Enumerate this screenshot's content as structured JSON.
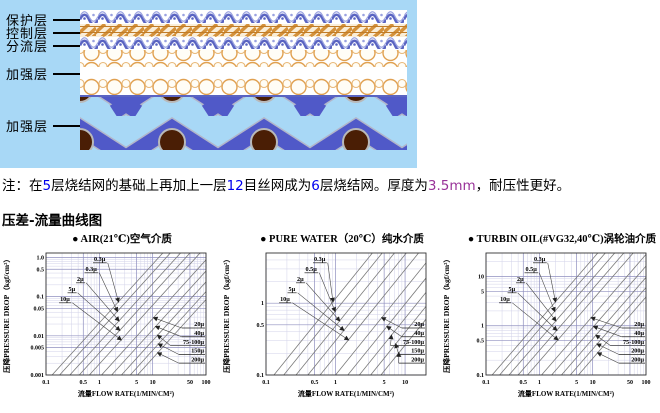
{
  "colors": {
    "diagram_bg": "#a8d8f6",
    "wave_blue": "#5a64c2",
    "mesh_orange": "#d4913a",
    "weave_blue": "#5059c8",
    "circle_brown": "#4a1e05",
    "grid_major": "#8f8fbf",
    "grid_minor": "#d2d2e8",
    "series_line": "#7a7a7a",
    "note_number_blue": "#0000ee",
    "note_thickness_purple": "#993399"
  },
  "diagram": {
    "layer_labels": [
      "保护层",
      "控制层",
      "分流层",
      "加强层",
      "加强层"
    ]
  },
  "note": {
    "segments": [
      {
        "text": "注：在",
        "color": "#000000"
      },
      {
        "text": "5",
        "color": "#0000ee"
      },
      {
        "text": "层烧结网的基础上再加上一层",
        "color": "#000000"
      },
      {
        "text": "12",
        "color": "#0000ee"
      },
      {
        "text": "目丝网成为",
        "color": "#000000"
      },
      {
        "text": "6",
        "color": "#0000ee"
      },
      {
        "text": "层烧结网。厚度为",
        "color": "#000000"
      },
      {
        "text": "3.5mm",
        "color": "#993399"
      },
      {
        "text": "，耐压性更好。",
        "color": "#000000"
      }
    ]
  },
  "section_title": "压差-流量曲线图",
  "chart_data": [
    {
      "type": "line",
      "scale": "log-log",
      "grid": true,
      "title": "● AIR(21℃)空气介质",
      "xlabel": "流量FLOW RATE(1/MIN/CM²)",
      "ylabel": "压降PRESSURE DROP（kgf/cm²）",
      "xlim": [
        0.1,
        100
      ],
      "ylim": [
        0.001,
        1.3
      ],
      "xticks": [
        {
          "label": "0.1",
          "value": 0.1
        },
        {
          "label": "0.5",
          "value": 0.5
        },
        {
          "label": "1",
          "value": 1
        },
        {
          "label": "5",
          "value": 5
        },
        {
          "label": "10",
          "value": 10
        },
        {
          "label": "50",
          "value": 50
        },
        {
          "label": "100",
          "value": 100
        }
      ],
      "yticks": [
        {
          "label": "1.0",
          "value": 1.0
        },
        {
          "label": "0.5",
          "value": 0.5
        },
        {
          "label": "0.1",
          "value": 0.1
        },
        {
          "label": "0.05",
          "value": 0.05
        },
        {
          "label": "0.01",
          "value": 0.01
        },
        {
          "label": "0.005",
          "value": 0.005
        },
        {
          "label": "0.001",
          "value": 0.001
        }
      ],
      "slope": 1.5,
      "series": [
        {
          "name": "0.3μ",
          "x_at_ymin": 0.13,
          "label_group": "upper-left"
        },
        {
          "name": "0.3μ",
          "x_at_ymin": 0.18,
          "label_group": "upper-left"
        },
        {
          "name": "2μ",
          "x_at_ymin": 0.28,
          "label_group": "upper-left"
        },
        {
          "name": "5μ",
          "x_at_ymin": 0.42,
          "label_group": "upper-left"
        },
        {
          "name": "10μ",
          "x_at_ymin": 0.65,
          "label_group": "upper-left"
        },
        {
          "name": "20μ",
          "x_at_ymin": 1.1,
          "label_group": "lower-right"
        },
        {
          "name": "40μ",
          "x_at_ymin": 1.7,
          "label_group": "lower-right"
        },
        {
          "name": "75-100μ",
          "x_at_ymin": 2.6,
          "label_group": "lower-right"
        },
        {
          "name": "150μ",
          "x_at_ymin": 3.8,
          "label_group": "lower-right"
        },
        {
          "name": "200μ",
          "x_at_ymin": 5.2,
          "label_group": "lower-right"
        }
      ]
    },
    {
      "type": "line",
      "scale": "log-log",
      "grid": true,
      "title": "● PURE WATER（20℃）纯水介质",
      "xlabel": "流量FLOW RATE(1/MIN/CM²)",
      "ylabel": "压降PRESSURE DROP（kgf/cm²）",
      "xlim": [
        0.1,
        20
      ],
      "ylim": [
        0.1,
        5
      ],
      "xticks": [
        {
          "label": "0.1",
          "value": 0.1
        },
        {
          "label": "0.5",
          "value": 0.5
        },
        {
          "label": "1",
          "value": 1
        },
        {
          "label": "5",
          "value": 5
        },
        {
          "label": "10",
          "value": 10
        }
      ],
      "yticks": [
        {
          "label": "1",
          "value": 1
        },
        {
          "label": "0.5",
          "value": 0.5
        },
        {
          "label": "0.1",
          "value": 0.1
        }
      ],
      "slope": 1.2,
      "series": [
        {
          "name": "0.3μ",
          "x_at_ymin": 0.13,
          "label_group": "upper-left"
        },
        {
          "name": "0.5μ",
          "x_at_ymin": 0.18,
          "label_group": "upper-left"
        },
        {
          "name": "2μ",
          "x_at_ymin": 0.27,
          "label_group": "upper-left"
        },
        {
          "name": "5μ",
          "x_at_ymin": 0.4,
          "label_group": "upper-left"
        },
        {
          "name": "10μ",
          "x_at_ymin": 0.6,
          "label_group": "upper-left"
        },
        {
          "name": "20μ",
          "x_at_ymin": 1.0,
          "label_group": "lower-right"
        },
        {
          "name": "40μ",
          "x_at_ymin": 1.5,
          "label_group": "lower-right"
        },
        {
          "name": "75-100μ",
          "x_at_ymin": 2.2,
          "label_group": "lower-right"
        },
        {
          "name": "150μ",
          "x_at_ymin": 3.2,
          "label_group": "lower-right"
        },
        {
          "name": "200μ",
          "x_at_ymin": 4.5,
          "label_group": "lower-right"
        }
      ]
    },
    {
      "type": "line",
      "scale": "log-log",
      "grid": true,
      "title": "● TURBIN OIL(#VG32,40℃)涡轮油介质",
      "xlabel": "流量FLOW RATE(1/MIN/CM²)",
      "ylabel": "压降PRESSURE DROP（kgf/cm²）",
      "xlim": [
        0.1,
        100
      ],
      "ylim": [
        0.1,
        30
      ],
      "xticks": [
        {
          "label": "0.1",
          "value": 0.1
        },
        {
          "label": "0.5",
          "value": 0.5
        },
        {
          "label": "1",
          "value": 1
        },
        {
          "label": "5",
          "value": 5
        },
        {
          "label": "10",
          "value": 10
        },
        {
          "label": "50",
          "value": 50
        },
        {
          "label": "100",
          "value": 100
        }
      ],
      "yticks": [
        {
          "label": "10",
          "value": 10
        },
        {
          "label": "5",
          "value": 5
        },
        {
          "label": "1",
          "value": 1
        },
        {
          "label": "0.5",
          "value": 0.5
        },
        {
          "label": "0.1",
          "value": 0.1
        }
      ],
      "slope": 1.25,
      "series": [
        {
          "name": "0.3μ",
          "x_at_ymin": 0.13,
          "label_group": "upper-left"
        },
        {
          "name": "0.5μ",
          "x_at_ymin": 0.18,
          "label_group": "upper-left"
        },
        {
          "name": "2μ",
          "x_at_ymin": 0.27,
          "label_group": "upper-left"
        },
        {
          "name": "5μ",
          "x_at_ymin": 0.4,
          "label_group": "upper-left"
        },
        {
          "name": "10μ",
          "x_at_ymin": 0.6,
          "label_group": "upper-left"
        },
        {
          "name": "20μ",
          "x_at_ymin": 1.1,
          "label_group": "lower-right"
        },
        {
          "name": "40μ",
          "x_at_ymin": 1.7,
          "label_group": "lower-right"
        },
        {
          "name": "75-100μ",
          "x_at_ymin": 2.6,
          "label_group": "lower-right"
        },
        {
          "name": "200μ",
          "x_at_ymin": 3.8,
          "label_group": "lower-right"
        },
        {
          "name": "200μ",
          "x_at_ymin": 5.4,
          "label_group": "lower-right"
        }
      ]
    }
  ]
}
